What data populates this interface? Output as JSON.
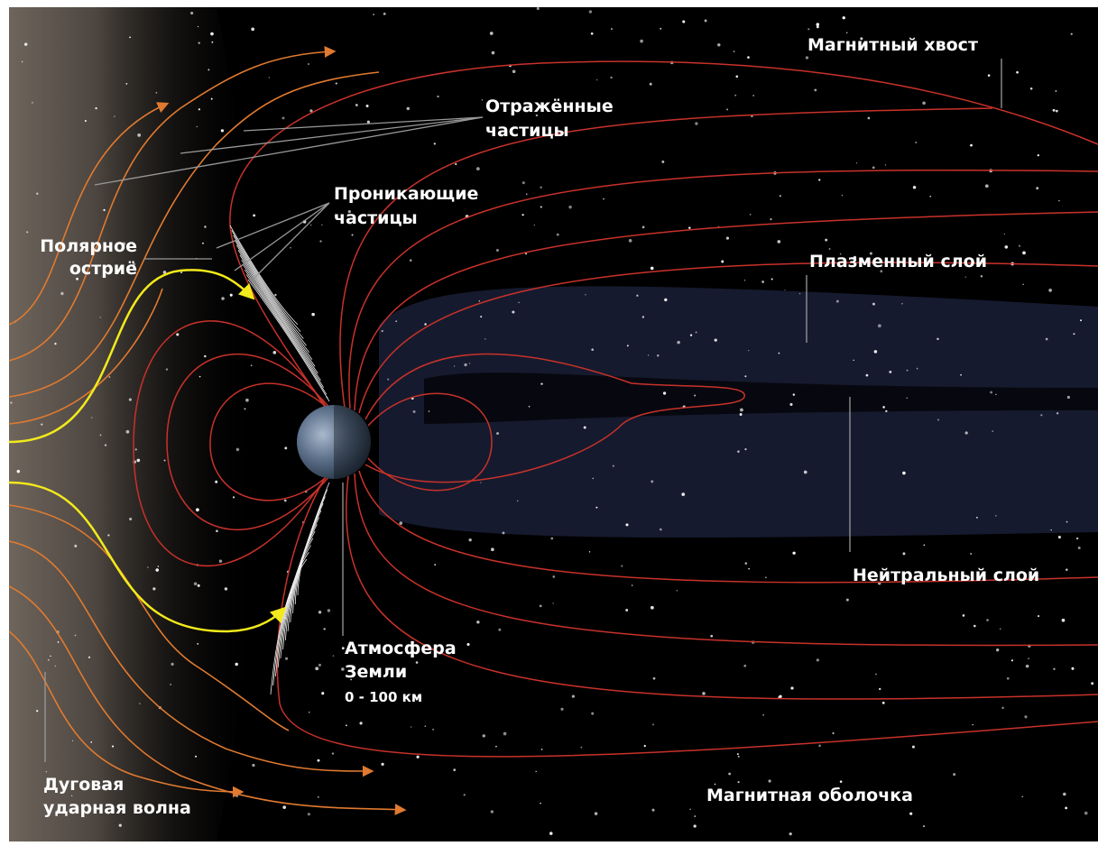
{
  "labels": {
    "magnetotail": {
      "lines": [
        "Магнитный хвост"
      ]
    },
    "reflected_particles": {
      "lines": [
        "Отражённые",
        "частицы"
      ]
    },
    "penetrating_particles": {
      "lines": [
        "Проникающие",
        "частицы"
      ]
    },
    "polar_cusp": {
      "lines": [
        "Полярное",
        "остриё"
      ]
    },
    "plasma_sheet": {
      "lines": [
        "Плазменный слой"
      ]
    },
    "neutral_sheet": {
      "lines": [
        "Нейтральный слой"
      ]
    },
    "atmosphere": {
      "lines": [
        "Атмосфера",
        "Земли",
        "0 - 100 км"
      ]
    },
    "bow_shock": {
      "lines": [
        "Дуговая",
        "ударная волна"
      ]
    },
    "magnetosheath": {
      "lines": [
        "Магнитная оболочка"
      ]
    }
  }
}
